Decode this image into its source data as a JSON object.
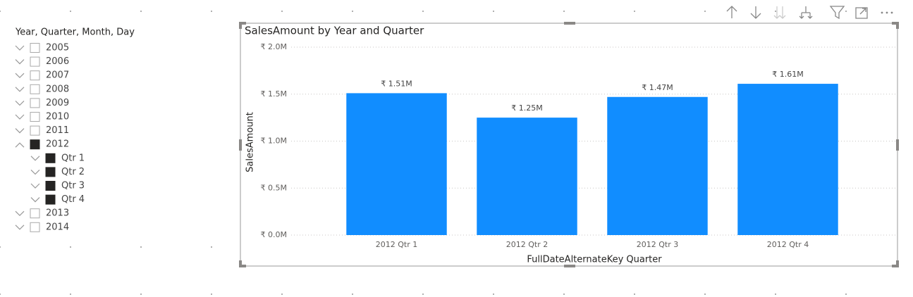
{
  "slicer": {
    "title": "Year, Quarter, Month, Day",
    "items": [
      {
        "label": "2005",
        "checked": false,
        "expanded": false
      },
      {
        "label": "2006",
        "checked": false,
        "expanded": false
      },
      {
        "label": "2007",
        "checked": false,
        "expanded": false
      },
      {
        "label": "2008",
        "checked": false,
        "expanded": false
      },
      {
        "label": "2009",
        "checked": false,
        "expanded": false
      },
      {
        "label": "2010",
        "checked": false,
        "expanded": false
      },
      {
        "label": "2011",
        "checked": false,
        "expanded": false
      },
      {
        "label": "2012",
        "checked": true,
        "expanded": true,
        "children": [
          {
            "label": "Qtr 1",
            "checked": true,
            "expanded": false
          },
          {
            "label": "Qtr 2",
            "checked": true,
            "expanded": false
          },
          {
            "label": "Qtr 3",
            "checked": true,
            "expanded": false
          },
          {
            "label": "Qtr 4",
            "checked": true,
            "expanded": false
          }
        ]
      },
      {
        "label": "2013",
        "checked": false,
        "expanded": false
      },
      {
        "label": "2014",
        "checked": false,
        "expanded": false
      }
    ]
  },
  "chart_data": {
    "type": "bar",
    "title": "SalesAmount by Year and Quarter",
    "x_label": "FullDateAlternateKey Quarter",
    "y_label": "SalesAmount",
    "categories": [
      "2012 Qtr 1",
      "2012 Qtr 2",
      "2012 Qtr 3",
      "2012 Qtr 4"
    ],
    "values": [
      1510000,
      1250000,
      1470000,
      1610000
    ],
    "value_labels": [
      "₹ 1.51M",
      "₹ 1.25M",
      "₹ 1.47M",
      "₹ 1.61M"
    ],
    "color": "#118dff",
    "ylim": [
      0,
      2000000
    ],
    "yticks": [
      {
        "value": 0,
        "label": "₹ 0.0M"
      },
      {
        "value": 500000,
        "label": "₹ 0.5M"
      },
      {
        "value": 1000000,
        "label": "₹ 1.0M"
      },
      {
        "value": 1500000,
        "label": "₹ 1.5M"
      },
      {
        "value": 2000000,
        "label": "₹ 2.0M"
      }
    ],
    "grid": true
  }
}
